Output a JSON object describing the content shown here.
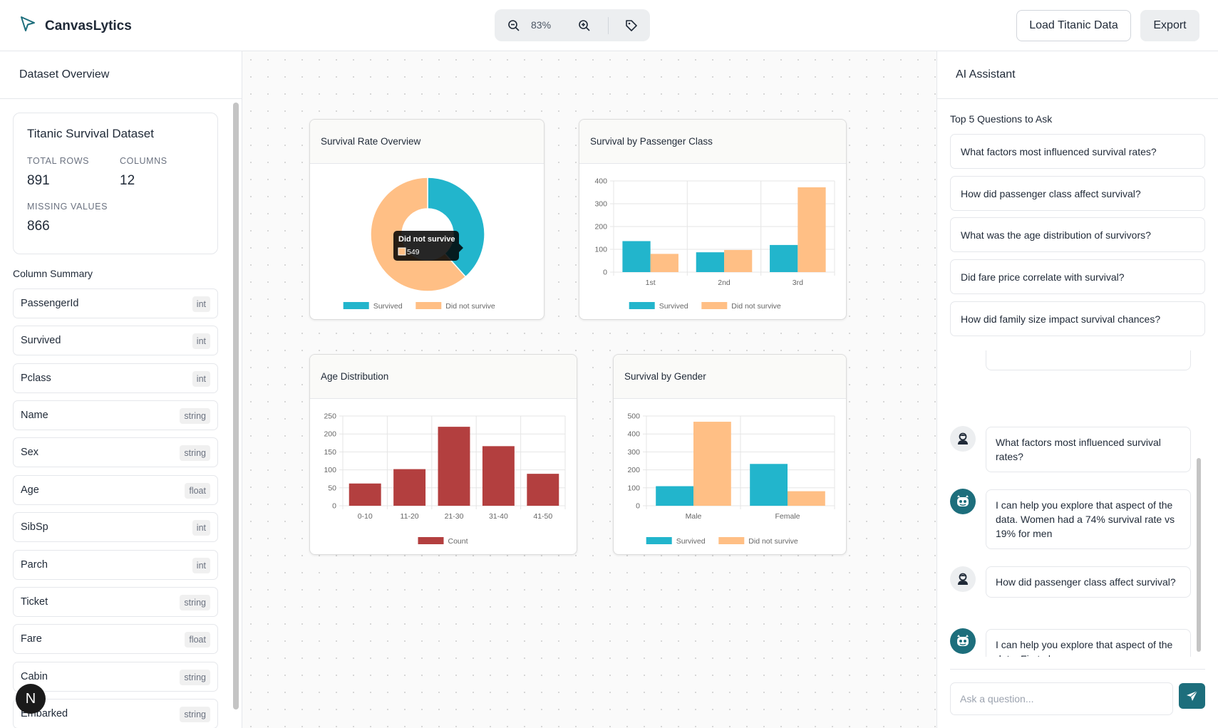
{
  "app": {
    "name": "CanvasLytics"
  },
  "toolbar": {
    "zoom_level": "83%",
    "load_label": "Load Titanic Data",
    "export_label": "Export"
  },
  "left_panel": {
    "title": "Dataset Overview",
    "dataset": {
      "title": "Titanic Survival Dataset",
      "total_rows_label": "TOTAL ROWS",
      "total_rows": "891",
      "columns_label": "COLUMNS",
      "columns": "12",
      "missing_label": "MISSING VALUES",
      "missing": "866"
    },
    "column_summary_title": "Column Summary",
    "columns": [
      {
        "name": "PassengerId",
        "type": "int"
      },
      {
        "name": "Survived",
        "type": "int"
      },
      {
        "name": "Pclass",
        "type": "int"
      },
      {
        "name": "Name",
        "type": "string"
      },
      {
        "name": "Sex",
        "type": "string"
      },
      {
        "name": "Age",
        "type": "float"
      },
      {
        "name": "SibSp",
        "type": "int"
      },
      {
        "name": "Parch",
        "type": "int"
      },
      {
        "name": "Ticket",
        "type": "string"
      },
      {
        "name": "Fare",
        "type": "float"
      },
      {
        "name": "Cabin",
        "type": "string"
      },
      {
        "name": "Embarked",
        "type": "string"
      }
    ],
    "badge_letter": "N"
  },
  "colors": {
    "survived": "#22b5cc",
    "did_not_survive": "#ffbf85",
    "count": "#b33f3f",
    "accent": "#1d6e7c"
  },
  "chart_data": [
    {
      "type": "pie",
      "title": "Survival Rate Overview",
      "labels": [
        "Survived",
        "Did not survive"
      ],
      "values": [
        342,
        549
      ],
      "tooltip": {
        "label": "Did not survive",
        "value": "549"
      }
    },
    {
      "type": "bar",
      "title": "Survival by Passenger Class",
      "categories": [
        "1st",
        "2nd",
        "3rd"
      ],
      "series": [
        {
          "name": "Survived",
          "values": [
            136,
            87,
            119
          ]
        },
        {
          "name": "Did not survive",
          "values": [
            80,
            97,
            372
          ]
        }
      ],
      "ylim": [
        0,
        400
      ],
      "yticks": [
        0,
        100,
        200,
        300,
        400
      ],
      "legend": "bottom"
    },
    {
      "type": "bar",
      "title": "Age Distribution",
      "categories": [
        "0-10",
        "11-20",
        "21-30",
        "31-40",
        "41-50"
      ],
      "series": [
        {
          "name": "Count",
          "values": [
            62,
            102,
            220,
            166,
            89
          ]
        }
      ],
      "ylim": [
        0,
        250
      ],
      "yticks": [
        0,
        50,
        100,
        150,
        200,
        250
      ],
      "legend": "bottom"
    },
    {
      "type": "bar",
      "title": "Survival by Gender",
      "categories": [
        "Male",
        "Female"
      ],
      "series": [
        {
          "name": "Survived",
          "values": [
            109,
            233
          ]
        },
        {
          "name": "Did not survive",
          "values": [
            468,
            81
          ]
        }
      ],
      "ylim": [
        0,
        500
      ],
      "yticks": [
        0,
        100,
        200,
        300,
        400,
        500
      ],
      "legend": "bottom"
    }
  ],
  "assistant": {
    "title": "AI Assistant",
    "questions_heading": "Top 5 Questions to Ask",
    "questions": [
      "What factors most influenced survival rates?",
      "How did passenger class affect survival?",
      "What was the age distribution of survivors?",
      "Did fare price correlate with survival?",
      "How did family size impact survival chances?"
    ],
    "messages": [
      {
        "role": "user",
        "text": "What factors most influenced survival rates?"
      },
      {
        "role": "bot",
        "text": "I can help you explore that aspect of the data. Women had a 74% survival rate vs 19% for men"
      },
      {
        "role": "user",
        "text": "How did passenger class affect survival?"
      },
      {
        "role": "bot",
        "text": "I can help you explore that aspect of the data. First-class passengers were more likely to survive"
      }
    ],
    "input_placeholder": "Ask a question..."
  }
}
